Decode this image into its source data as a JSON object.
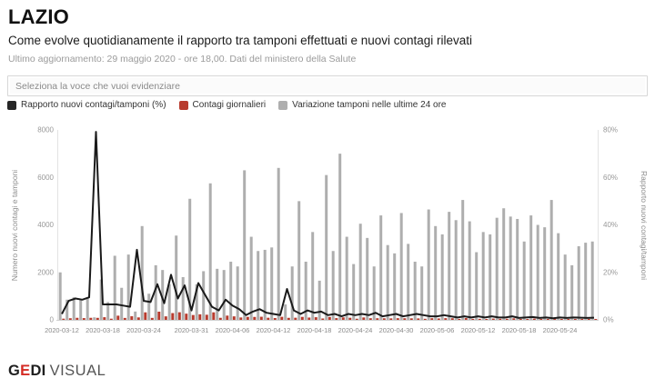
{
  "header": {
    "title": "LAZIO",
    "subtitle": "Come evolve quotidianamente il rapporto tra tamponi effettuati e nuovi contagi rilevati",
    "update_note": "Ultimo aggiornamento: 29 maggio 2020 - ore 18,00. Dati del ministero della Salute"
  },
  "controls": {
    "select_placeholder": "Seleziona la voce che vuoi evidenziare"
  },
  "legend": [
    {
      "label": "Rapporto nuovi contagi/tamponi (%)",
      "color": "#262626"
    },
    {
      "label": "Contagi giornalieri",
      "color": "#b83b2e"
    },
    {
      "label": "Variazione tamponi nelle ultime 24 ore",
      "color": "#aeaeae"
    }
  ],
  "footer": {
    "brand_g": "G",
    "brand_e": "E",
    "brand_di": "DI",
    "brand_suffix": "VISUAL",
    "accent_color": "#d42b24"
  },
  "chart_data": {
    "type": "bar",
    "subtype": "combo-bar-line",
    "title": "Come evolve quotidianamente il rapporto tra tamponi effettuati e nuovi contagi rilevati",
    "left_axis": {
      "label": "Numero nuovi contagi e tamponi",
      "ticks": [
        0,
        2000,
        4000,
        6000,
        8000
      ],
      "max": 8000
    },
    "right_axis": {
      "label": "Rapporto nuovi contagi/tamponi",
      "tick_labels": [
        "0%",
        "20%",
        "40%",
        "60%",
        "80%"
      ],
      "max": 80
    },
    "grid": false,
    "legend_position": "top",
    "colors": {
      "line": "#1a1a1a",
      "contagi": "#b83b2e",
      "tamponi": "#aeaeae"
    },
    "x_ticks": [
      {
        "index": 0,
        "label": "2020-03-12"
      },
      {
        "index": 6,
        "label": "2020-03-18"
      },
      {
        "index": 12,
        "label": "2020-03-24"
      },
      {
        "index": 19,
        "label": "2020-03-31"
      },
      {
        "index": 25,
        "label": "2020-04-06"
      },
      {
        "index": 31,
        "label": "2020-04-12"
      },
      {
        "index": 37,
        "label": "2020-04-18"
      },
      {
        "index": 43,
        "label": "2020-04-24"
      },
      {
        "index": 49,
        "label": "2020-04-30"
      },
      {
        "index": 55,
        "label": "2020-05-06"
      },
      {
        "index": 61,
        "label": "2020-05-12"
      },
      {
        "index": 67,
        "label": "2020-05-18"
      },
      {
        "index": 73,
        "label": "2020-05-24"
      }
    ],
    "dates": [
      "2020-03-12",
      "2020-03-13",
      "2020-03-14",
      "2020-03-15",
      "2020-03-16",
      "2020-03-17",
      "2020-03-18",
      "2020-03-19",
      "2020-03-20",
      "2020-03-21",
      "2020-03-22",
      "2020-03-23",
      "2020-03-24",
      "2020-03-25",
      "2020-03-26",
      "2020-03-27",
      "2020-03-28",
      "2020-03-29",
      "2020-03-30",
      "2020-03-31",
      "2020-04-01",
      "2020-04-02",
      "2020-04-03",
      "2020-04-04",
      "2020-04-05",
      "2020-04-06",
      "2020-04-07",
      "2020-04-08",
      "2020-04-09",
      "2020-04-10",
      "2020-04-11",
      "2020-04-12",
      "2020-04-13",
      "2020-04-14",
      "2020-04-15",
      "2020-04-16",
      "2020-04-17",
      "2020-04-18",
      "2020-04-19",
      "2020-04-20",
      "2020-04-21",
      "2020-04-22",
      "2020-04-23",
      "2020-04-24",
      "2020-04-25",
      "2020-04-26",
      "2020-04-27",
      "2020-04-28",
      "2020-04-29",
      "2020-04-30",
      "2020-05-01",
      "2020-05-02",
      "2020-05-03",
      "2020-05-04",
      "2020-05-05",
      "2020-05-06",
      "2020-05-07",
      "2020-05-08",
      "2020-05-09",
      "2020-05-10",
      "2020-05-11",
      "2020-05-12",
      "2020-05-13",
      "2020-05-14",
      "2020-05-15",
      "2020-05-16",
      "2020-05-17",
      "2020-05-18",
      "2020-05-19",
      "2020-05-20",
      "2020-05-21",
      "2020-05-22",
      "2020-05-23",
      "2020-05-24",
      "2020-05-25",
      "2020-05-26",
      "2020-05-27",
      "2020-05-28",
      "2020-05-29"
    ],
    "series": [
      {
        "name": "Variazione tamponi nelle ultime 24 ore",
        "render": "bar",
        "axis": "left",
        "values": [
          2000,
          850,
          950,
          870,
          900,
          106,
          1700,
          750,
          2700,
          1350,
          2750,
          350,
          3950,
          1100,
          2300,
          2100,
          1500,
          3550,
          1800,
          5100,
          1500,
          2050,
          5750,
          2150,
          2100,
          2450,
          2250,
          6300,
          3500,
          2900,
          2950,
          3050,
          6400,
          650,
          2250,
          5000,
          2450,
          3700,
          1650,
          6100,
          2900,
          7000,
          3500,
          2350,
          4050,
          3450,
          2250,
          4400,
          3150,
          2800,
          4500,
          3200,
          2450,
          2250,
          4650,
          3950,
          3600,
          4550,
          4200,
          5050,
          4150,
          2850,
          3700,
          3600,
          4300,
          4700,
          4350,
          4250,
          3300,
          4400,
          4000,
          3900,
          5050,
          3650,
          2750,
          2300,
          3100,
          3250,
          3300
        ]
      },
      {
        "name": "Contagi giornalieri",
        "render": "bar",
        "axis": "left",
        "values": [
          50,
          68,
          86,
          74,
          86,
          84,
          111,
          49,
          176,
          81,
          151,
          103,
          316,
          83,
          345,
          147,
          285,
          320,
          261,
          204,
          233,
          215,
          316,
          86,
          179,
          147,
          101,
          126,
          123,
          131,
          89,
          76,
          128,
          85,
          90,
          125,
          98,
          111,
          58,
          122,
          73,
          105,
          88,
          47,
          101,
          69,
          68,
          66,
          63,
          70,
          68,
          64,
          61,
          45,
          70,
          59,
          72,
          68,
          42,
          76,
          42,
          43,
          37,
          54,
          43,
          47,
          65,
          34,
          33,
          53,
          32,
          39,
          35,
          37,
          22,
          23,
          28,
          26,
          30
        ]
      },
      {
        "name": "Rapporto nuovi contagi/tamponi (%)",
        "render": "line",
        "axis": "right",
        "values": [
          2.5,
          8,
          9,
          8.5,
          9.5,
          79.2,
          6.5,
          6.5,
          6.5,
          6,
          5.5,
          29.5,
          8,
          7.5,
          15,
          7,
          19,
          9,
          14.5,
          4,
          15.5,
          10.5,
          5.5,
          4,
          8.5,
          6,
          4.5,
          2,
          3.5,
          4.5,
          3,
          2.5,
          2,
          13,
          4,
          2.5,
          4,
          3,
          3.5,
          2,
          2.5,
          1.5,
          2.5,
          2,
          2.5,
          2,
          3,
          1.5,
          2,
          2.5,
          1.5,
          2,
          2.5,
          2,
          1.5,
          1.5,
          2,
          1.5,
          1,
          1.5,
          1,
          1.5,
          1,
          1.5,
          1,
          1,
          1.5,
          0.8,
          1,
          1.2,
          0.8,
          1,
          0.7,
          1,
          0.8,
          1,
          0.9,
          0.8,
          0.9
        ]
      }
    ]
  }
}
